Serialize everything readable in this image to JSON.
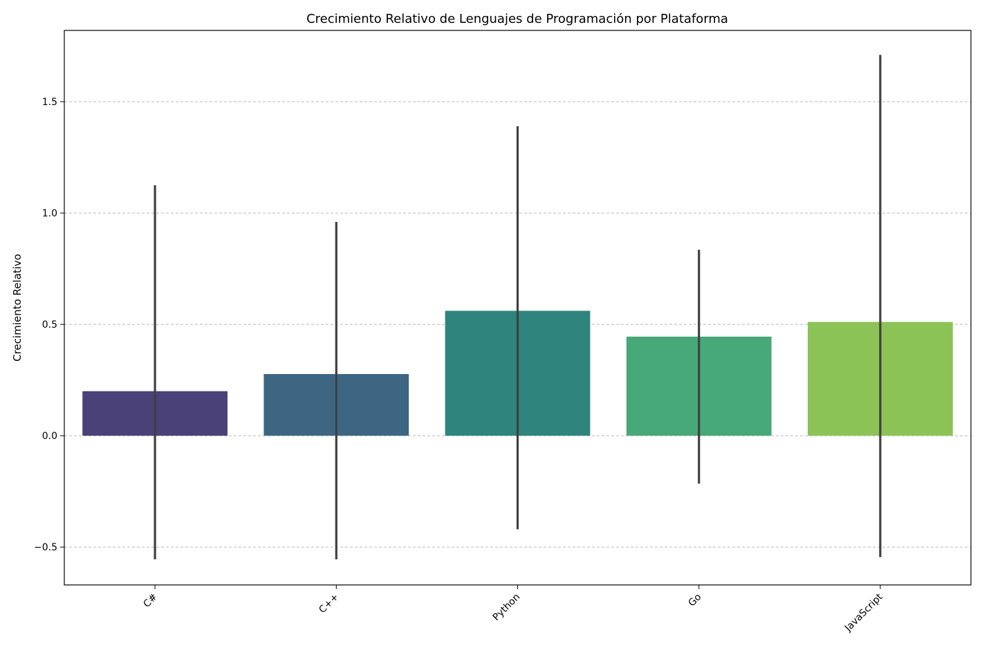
{
  "chart_data": {
    "type": "bar",
    "title": "Crecimiento Relativo de Lenguajes de Programación por Plataforma",
    "xlabel": "",
    "ylabel": "Crecimiento Relativo",
    "categories": [
      "C#",
      "C++",
      "Python",
      "Go",
      "JavaScript"
    ],
    "values": [
      0.2,
      0.277,
      0.561,
      0.445,
      0.511
    ],
    "error_low": [
      -0.555,
      -0.555,
      -0.42,
      -0.215,
      -0.545
    ],
    "error_high": [
      1.125,
      0.96,
      1.39,
      0.835,
      1.71
    ],
    "colors": [
      "#4a4178",
      "#3d6682",
      "#2f857d",
      "#47a878",
      "#8cc356"
    ],
    "error_color": "#404040",
    "ylim": [
      -0.67,
      1.82
    ],
    "yticks": [
      -0.5,
      0.0,
      0.5,
      1.0,
      1.5
    ],
    "ytick_labels": [
      "−0.5",
      "0.0",
      "0.5",
      "1.0",
      "1.5"
    ],
    "grid": true,
    "grid_axis": "y",
    "xtick_rotation_deg": -45
  }
}
